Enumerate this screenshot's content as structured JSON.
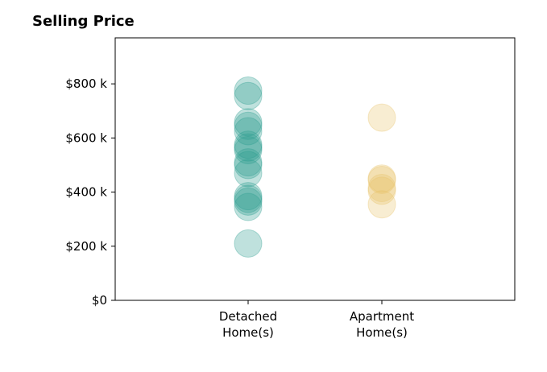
{
  "chart_data": {
    "type": "scatter",
    "title": "Selling Price",
    "xlabel": "",
    "ylabel": "",
    "categories": [
      [
        "Detached",
        "Home(s)"
      ],
      [
        "Apartment",
        "Home(s)"
      ]
    ],
    "yticks": [
      0,
      200,
      400,
      600,
      800
    ],
    "ytick_labels": [
      "$0",
      "$200 k",
      "$400 k",
      "$600 k",
      "$800 k"
    ],
    "ylim": [
      0,
      970
    ],
    "grid": false,
    "series": [
      {
        "category": 0,
        "color": "#2a9d8f",
        "values": [
          775,
          755,
          658,
          645,
          625,
          575,
          565,
          555,
          510,
          500,
          470,
          385,
          375,
          365,
          345,
          210
        ]
      },
      {
        "category": 1,
        "color": "#e9c46a",
        "values": [
          675,
          450,
          445,
          415,
          405,
          355
        ]
      }
    ]
  }
}
